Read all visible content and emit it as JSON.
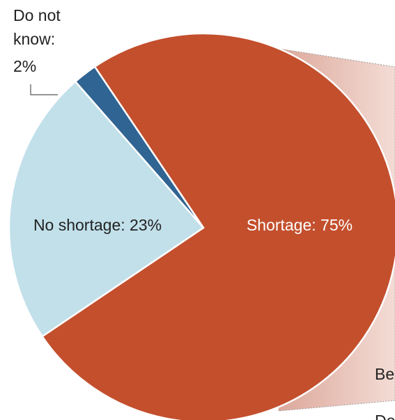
{
  "chart_data": {
    "type": "pie",
    "slices": [
      {
        "label": "Shortage",
        "value": 75,
        "color": "#c34f2d",
        "text": "Shortage: 75%",
        "text_color": "#ffffff"
      },
      {
        "label": "No shortage",
        "value": 23,
        "color": "#c2e0ea",
        "text": "No shortage: 23%",
        "text_color": "#222222"
      },
      {
        "label": "Do not know",
        "value": 2,
        "color": "#2f6493",
        "text_lines": [
          "Do not",
          "know:",
          "2%"
        ],
        "text_color": "#222222"
      }
    ],
    "partial_labels": [
      "Be",
      "De"
    ],
    "colors": {
      "breakout_light": "#f3dcd5",
      "breakout_dark": "#dba497",
      "leader_line": "#555555"
    }
  }
}
